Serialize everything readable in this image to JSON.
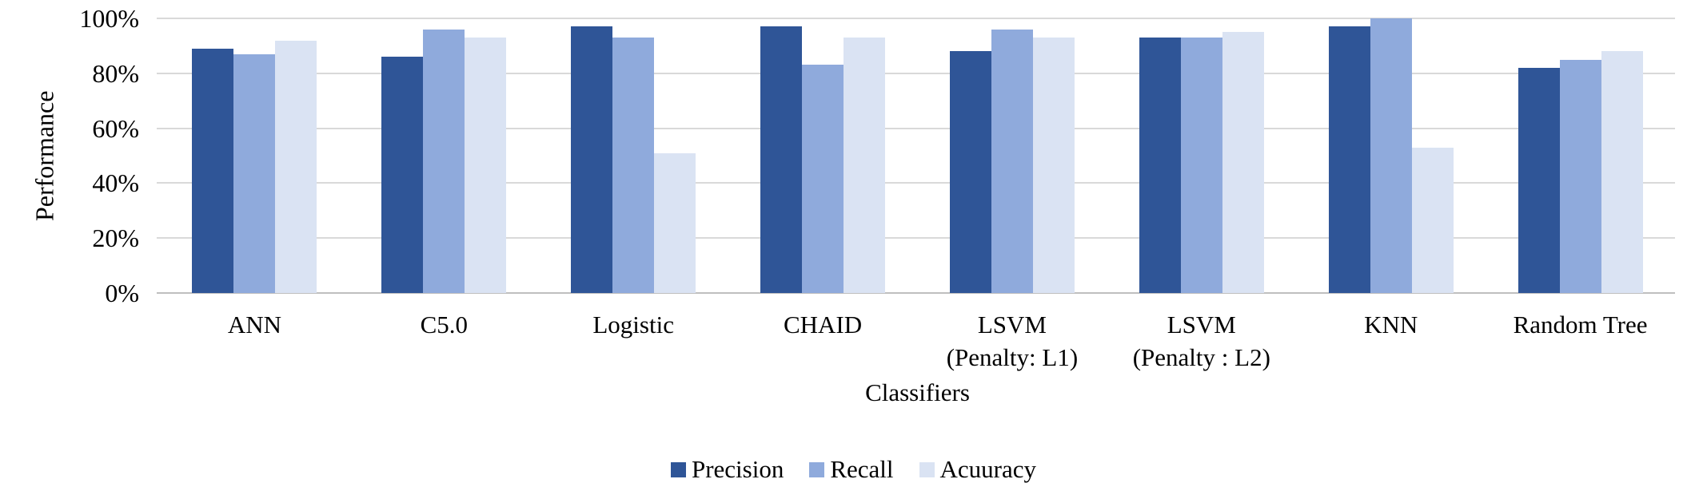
{
  "chart_data": {
    "type": "bar",
    "title": "",
    "xlabel": "Classifiers",
    "ylabel": "Performance",
    "ylim": [
      0,
      100
    ],
    "grid": true,
    "legend_position": "bottom",
    "yticks": [
      {
        "label": "0%",
        "value": 0
      },
      {
        "label": "20%",
        "value": 20
      },
      {
        "label": "40%",
        "value": 40
      },
      {
        "label": "60%",
        "value": 60
      },
      {
        "label": "80%",
        "value": 80
      },
      {
        "label": "100%",
        "value": 100
      }
    ],
    "categories": [
      {
        "label": "ANN",
        "sublabel": ""
      },
      {
        "label": "C5.0",
        "sublabel": ""
      },
      {
        "label": "Logistic",
        "sublabel": ""
      },
      {
        "label": "CHAID",
        "sublabel": ""
      },
      {
        "label": "LSVM",
        "sublabel": "(Penalty: L1)"
      },
      {
        "label": "LSVM",
        "sublabel": "(Penalty : L2)"
      },
      {
        "label": "KNN",
        "sublabel": ""
      },
      {
        "label": "Random Tree",
        "sublabel": ""
      }
    ],
    "series": [
      {
        "name": "Precision",
        "color": "#2F5597",
        "values": [
          89,
          86,
          97,
          97,
          88,
          93,
          97,
          82
        ]
      },
      {
        "name": "Recall",
        "color": "#8FAADC",
        "values": [
          87,
          96,
          93,
          83,
          96,
          93,
          100,
          85
        ]
      },
      {
        "name": "Acuuracy",
        "color": "#DAE3F3",
        "values": [
          92,
          93,
          51,
          93,
          93,
          95,
          53,
          88
        ]
      }
    ],
    "colors": {
      "gridline": "#D9D9D9",
      "axis_line": "#BFBFBF",
      "text": "#000000",
      "background": "#FFFFFF"
    }
  }
}
